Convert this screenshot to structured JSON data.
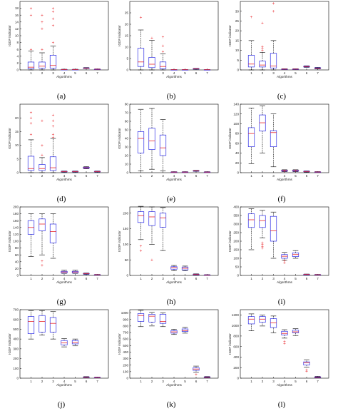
{
  "figure": {
    "xlabel": "Algorithms",
    "ylabel": "IGDF indicator"
  },
  "colors": {
    "box": "#2e2ee6",
    "median": "#e8262b",
    "whisker": "#000000",
    "outlier": "#e8262b",
    "axis": "#000000"
  },
  "chart_data": [
    {
      "type": "box",
      "caption": "(a)",
      "categories": [
        "1",
        "2",
        "3",
        "4",
        "5",
        "6",
        "7"
      ],
      "ylim": [
        0,
        20
      ],
      "yticks": [
        0,
        2,
        4,
        6,
        8,
        10,
        12,
        14,
        16,
        18
      ],
      "boxes": [
        {
          "min": 0,
          "q1": 0.3,
          "median": 0.8,
          "q3": 2.3,
          "max": 5.5,
          "outliers": [
            6,
            16,
            18
          ]
        },
        {
          "min": 0,
          "q1": 0.5,
          "median": 1.1,
          "q3": 2.3,
          "max": 5,
          "outliers": [
            6,
            12,
            14,
            16
          ]
        },
        {
          "min": 0,
          "q1": 0.5,
          "median": 1.3,
          "q3": 4.3,
          "max": 7,
          "outliers": [
            8,
            13,
            15,
            17,
            18
          ]
        },
        {
          "min": 0.05,
          "q1": 0.1,
          "median": 0.12,
          "q3": 0.15,
          "max": 0.2,
          "outliers": []
        },
        {
          "min": 0.05,
          "q1": 0.1,
          "median": 0.12,
          "q3": 0.15,
          "max": 0.2,
          "outliers": []
        },
        {
          "min": 0.4,
          "q1": 0.5,
          "median": 0.55,
          "q3": 0.6,
          "max": 0.7,
          "outliers": []
        },
        {
          "min": 0.1,
          "q1": 0.15,
          "median": 0.2,
          "q3": 0.25,
          "max": 0.3,
          "outliers": []
        }
      ]
    },
    {
      "type": "box",
      "caption": "(b)",
      "categories": [
        "1",
        "2",
        "3",
        "4",
        "5",
        "6",
        "7"
      ],
      "ylim": [
        0,
        30
      ],
      "yticks": [
        0,
        5,
        10,
        15,
        20,
        25
      ],
      "boxes": [
        {
          "min": 0,
          "q1": 1.5,
          "median": 3.5,
          "q3": 9.5,
          "max": 17.5,
          "outliers": [
            23
          ]
        },
        {
          "min": 0,
          "q1": 1,
          "median": 2.5,
          "q3": 5.5,
          "max": 13,
          "outliers": [
            14
          ]
        },
        {
          "min": 0,
          "q1": 0.5,
          "median": 1.5,
          "q3": 3.5,
          "max": 7,
          "outliers": [
            8,
            10.5,
            14.5
          ]
        },
        {
          "min": 0,
          "q1": 0.05,
          "median": 0.1,
          "q3": 0.15,
          "max": 0.2,
          "outliers": []
        },
        {
          "min": 0,
          "q1": 0.05,
          "median": 0.1,
          "q3": 0.15,
          "max": 0.2,
          "outliers": []
        },
        {
          "min": 0.3,
          "q1": 0.4,
          "median": 0.5,
          "q3": 0.6,
          "max": 0.7,
          "outliers": []
        },
        {
          "min": 0,
          "q1": 0.05,
          "median": 0.1,
          "q3": 0.15,
          "max": 0.2,
          "outliers": []
        }
      ]
    },
    {
      "type": "box",
      "caption": "(c)",
      "categories": [
        "1",
        "2",
        "3",
        "4",
        "5",
        "6",
        "7"
      ],
      "ylim": [
        0,
        35
      ],
      "yticks": [
        0,
        5,
        10,
        15,
        20,
        25,
        30
      ],
      "boxes": [
        {
          "min": 0,
          "q1": 1.5,
          "median": 3,
          "q3": 7.5,
          "max": 15,
          "outliers": [
            27
          ]
        },
        {
          "min": 0,
          "q1": 1.5,
          "median": 2.5,
          "q3": 4.5,
          "max": 9,
          "outliers": [
            10,
            11,
            12,
            24
          ]
        },
        {
          "min": 0,
          "q1": 1,
          "median": 2,
          "q3": 8.5,
          "max": 15,
          "outliers": [
            30,
            34
          ]
        },
        {
          "min": 0.2,
          "q1": 0.3,
          "median": 0.4,
          "q3": 0.5,
          "max": 0.6,
          "outliers": []
        },
        {
          "min": 0.2,
          "q1": 0.3,
          "median": 0.4,
          "q3": 0.5,
          "max": 0.6,
          "outliers": []
        },
        {
          "min": 1.3,
          "q1": 1.5,
          "median": 1.7,
          "q3": 1.9,
          "max": 2.1,
          "outliers": []
        },
        {
          "min": 0.5,
          "q1": 0.7,
          "median": 0.9,
          "q3": 1.1,
          "max": 1.3,
          "outliers": []
        }
      ]
    },
    {
      "type": "box",
      "caption": "(d)",
      "categories": [
        "1",
        "2",
        "3",
        "4",
        "5",
        "6",
        "7"
      ],
      "ylim": [
        0,
        25
      ],
      "yticks": [
        0,
        5,
        10,
        15,
        20
      ],
      "boxes": [
        {
          "min": 0,
          "q1": 0.8,
          "median": 1.5,
          "q3": 6,
          "max": 12,
          "outliers": [
            14,
            18,
            20,
            22
          ]
        },
        {
          "min": 0,
          "q1": 0.8,
          "median": 1.5,
          "q3": 3,
          "max": 5.5,
          "outliers": [
            6.5,
            10,
            19
          ]
        },
        {
          "min": 0,
          "q1": 0.8,
          "median": 1.8,
          "q3": 5.8,
          "max": 12.5,
          "outliers": [
            13,
            14,
            17,
            19,
            21
          ]
        },
        {
          "min": 0.2,
          "q1": 0.3,
          "median": 0.4,
          "q3": 0.5,
          "max": 0.6,
          "outliers": []
        },
        {
          "min": 0.2,
          "q1": 0.3,
          "median": 0.4,
          "q3": 0.5,
          "max": 0.6,
          "outliers": []
        },
        {
          "min": 1.4,
          "q1": 1.6,
          "median": 1.8,
          "q3": 2.0,
          "max": 2.2,
          "outliers": []
        },
        {
          "min": 0.2,
          "q1": 0.3,
          "median": 0.4,
          "q3": 0.5,
          "max": 0.6,
          "outliers": []
        }
      ]
    },
    {
      "type": "box",
      "caption": "(e)",
      "categories": [
        "1",
        "2",
        "3",
        "4",
        "5",
        "6",
        "7"
      ],
      "ylim": [
        0,
        80
      ],
      "yticks": [
        0,
        10,
        20,
        30,
        40,
        50,
        60,
        70,
        80
      ],
      "boxes": [
        {
          "min": 2,
          "q1": 23,
          "median": 40,
          "q3": 48,
          "max": 74,
          "outliers": []
        },
        {
          "min": 4,
          "q1": 27,
          "median": 37,
          "q3": 52,
          "max": 75,
          "outliers": []
        },
        {
          "min": 2,
          "q1": 20,
          "median": 29,
          "q3": 44,
          "max": 62,
          "outliers": []
        },
        {
          "min": 0.3,
          "q1": 0.5,
          "median": 0.7,
          "q3": 0.9,
          "max": 1.2,
          "outliers": []
        },
        {
          "min": 0.3,
          "q1": 0.5,
          "median": 0.7,
          "q3": 0.9,
          "max": 1.2,
          "outliers": []
        },
        {
          "min": 1.5,
          "q1": 1.9,
          "median": 2.1,
          "q3": 2.4,
          "max": 2.8,
          "outliers": []
        },
        {
          "min": 0.3,
          "q1": 0.5,
          "median": 0.7,
          "q3": 0.9,
          "max": 1.2,
          "outliers": []
        }
      ]
    },
    {
      "type": "box",
      "caption": "(f)",
      "categories": [
        "1",
        "2",
        "3",
        "4",
        "5",
        "6",
        "7"
      ],
      "ylim": [
        0,
        140
      ],
      "yticks": [
        0,
        20,
        40,
        60,
        80,
        100,
        120,
        140
      ],
      "boxes": [
        {
          "min": 18,
          "q1": 53,
          "median": 80,
          "q3": 92,
          "max": 132,
          "outliers": []
        },
        {
          "min": 40,
          "q1": 85,
          "median": 102,
          "q3": 118,
          "max": 137,
          "outliers": []
        },
        {
          "min": 12,
          "q1": 53,
          "median": 82,
          "q3": 86,
          "max": 120,
          "outliers": []
        },
        {
          "min": 2,
          "q1": 3,
          "median": 4,
          "q3": 5,
          "max": 6,
          "outliers": [
            3,
            4
          ]
        },
        {
          "min": 2,
          "q1": 3,
          "median": 4,
          "q3": 5,
          "max": 6,
          "outliers": [
            4
          ]
        },
        {
          "min": 1,
          "q1": 1.8,
          "median": 2.4,
          "q3": 3,
          "max": 3.6,
          "outliers": []
        },
        {
          "min": 0.5,
          "q1": 1,
          "median": 1.4,
          "q3": 1.8,
          "max": 2.2,
          "outliers": []
        }
      ]
    },
    {
      "type": "box",
      "caption": "(g)",
      "categories": [
        "1",
        "2",
        "3",
        "4",
        "5",
        "6",
        "7"
      ],
      "ylim": [
        0,
        200
      ],
      "yticks": [
        0,
        20,
        40,
        60,
        80,
        100,
        120,
        140,
        160,
        180,
        200
      ],
      "boxes": [
        {
          "min": 55,
          "q1": 120,
          "median": 140,
          "q3": 160,
          "max": 180,
          "outliers": []
        },
        {
          "min": 60,
          "q1": 130,
          "median": 150,
          "q3": 165,
          "max": 180,
          "outliers": [
            30,
            42
          ]
        },
        {
          "min": 50,
          "q1": 95,
          "median": 128,
          "q3": 150,
          "max": 180,
          "outliers": []
        },
        {
          "min": 6,
          "q1": 7,
          "median": 10,
          "q3": 12,
          "max": 15,
          "outliers": []
        },
        {
          "min": 6,
          "q1": 7,
          "median": 10,
          "q3": 12,
          "max": 15,
          "outliers": []
        },
        {
          "min": 3,
          "q1": 4,
          "median": 5,
          "q3": 6,
          "max": 7,
          "outliers": []
        },
        {
          "min": 1,
          "q1": 1.5,
          "median": 2,
          "q3": 2.5,
          "max": 3,
          "outliers": []
        }
      ]
    },
    {
      "type": "box",
      "caption": "(h)",
      "categories": [
        "1",
        "2",
        "3",
        "4",
        "5",
        "6",
        "7"
      ],
      "ylim": [
        0,
        220
      ],
      "yticks": [
        0,
        50,
        100,
        150,
        200
      ],
      "boxes": [
        {
          "min": 115,
          "q1": 170,
          "median": 192,
          "q3": 205,
          "max": 222,
          "outliers": [
            80,
            95
          ]
        },
        {
          "min": 100,
          "q1": 160,
          "median": 188,
          "q3": 205,
          "max": 220,
          "outliers": [
            50
          ]
        },
        {
          "min": 80,
          "q1": 155,
          "median": 185,
          "q3": 200,
          "max": 218,
          "outliers": []
        },
        {
          "min": 15,
          "q1": 20,
          "median": 25,
          "q3": 28,
          "max": 32,
          "outliers": []
        },
        {
          "min": 15,
          "q1": 18,
          "median": 23,
          "q3": 27,
          "max": 30,
          "outliers": []
        },
        {
          "min": 1,
          "q1": 2,
          "median": 3,
          "q3": 4,
          "max": 5,
          "outliers": []
        },
        {
          "min": 0.5,
          "q1": 1,
          "median": 1.5,
          "q3": 2,
          "max": 2.5,
          "outliers": []
        }
      ]
    },
    {
      "type": "box",
      "caption": "(i)",
      "categories": [
        "1",
        "2",
        "3",
        "4",
        "5",
        "6",
        "7"
      ],
      "ylim": [
        0,
        400
      ],
      "yticks": [
        0,
        50,
        100,
        150,
        200,
        250,
        300,
        350,
        400
      ],
      "boxes": [
        {
          "min": 150,
          "q1": 280,
          "median": 325,
          "q3": 360,
          "max": 390,
          "outliers": []
        },
        {
          "min": 220,
          "q1": 280,
          "median": 320,
          "q3": 350,
          "max": 380,
          "outliers": [
            160,
            170,
            180,
            190
          ]
        },
        {
          "min": 100,
          "q1": 200,
          "median": 260,
          "q3": 345,
          "max": 370,
          "outliers": []
        },
        {
          "min": 90,
          "q1": 100,
          "median": 112,
          "q3": 122,
          "max": 135,
          "outliers": [
            75,
            85
          ]
        },
        {
          "min": 100,
          "q1": 110,
          "median": 122,
          "q3": 132,
          "max": 145,
          "outliers": []
        },
        {
          "min": 4,
          "q1": 5,
          "median": 6,
          "q3": 7,
          "max": 8,
          "outliers": []
        },
        {
          "min": 2,
          "q1": 3,
          "median": 4,
          "q3": 5,
          "max": 6,
          "outliers": []
        }
      ]
    },
    {
      "type": "box",
      "caption": "(j)",
      "categories": [
        "1",
        "2",
        "3",
        "4",
        "5",
        "6",
        "7"
      ],
      "ylim": [
        0,
        700
      ],
      "yticks": [
        0,
        100,
        200,
        300,
        400,
        500,
        600,
        700
      ],
      "boxes": [
        {
          "min": 400,
          "q1": 455,
          "median": 580,
          "q3": 630,
          "max": 690,
          "outliers": []
        },
        {
          "min": 440,
          "q1": 470,
          "median": 580,
          "q3": 640,
          "max": 690,
          "outliers": []
        },
        {
          "min": 400,
          "q1": 470,
          "median": 560,
          "q3": 620,
          "max": 680,
          "outliers": []
        },
        {
          "min": 320,
          "q1": 340,
          "median": 360,
          "q3": 385,
          "max": 405,
          "outliers": []
        },
        {
          "min": 330,
          "q1": 350,
          "median": 365,
          "q3": 385,
          "max": 400,
          "outliers": []
        },
        {
          "min": 5,
          "q1": 7,
          "median": 10,
          "q3": 13,
          "max": 16,
          "outliers": []
        },
        {
          "min": 3,
          "q1": 5,
          "median": 7,
          "q3": 9,
          "max": 11,
          "outliers": []
        }
      ]
    },
    {
      "type": "box",
      "caption": "(k)",
      "categories": [
        "1",
        "2",
        "3",
        "4",
        "5",
        "6",
        "7"
      ],
      "ylim": [
        0,
        1050
      ],
      "yticks": [
        0,
        100,
        200,
        300,
        400,
        500,
        600,
        700,
        800,
        900,
        1000
      ],
      "boxes": [
        {
          "min": 790,
          "q1": 870,
          "median": 960,
          "q3": 990,
          "max": 1040,
          "outliers": []
        },
        {
          "min": 800,
          "q1": 860,
          "median": 950,
          "q3": 980,
          "max": 1010,
          "outliers": []
        },
        {
          "min": 790,
          "q1": 840,
          "median": 870,
          "q3": 980,
          "max": 1000,
          "outliers": []
        },
        {
          "min": 670,
          "q1": 690,
          "median": 710,
          "q3": 730,
          "max": 750,
          "outliers": []
        },
        {
          "min": 690,
          "q1": 715,
          "median": 730,
          "q3": 755,
          "max": 780,
          "outliers": []
        },
        {
          "min": 90,
          "q1": 120,
          "median": 140,
          "q3": 160,
          "max": 185,
          "outliers": [
            60
          ]
        },
        {
          "min": 5,
          "q1": 10,
          "median": 15,
          "q3": 20,
          "max": 25,
          "outliers": []
        }
      ]
    },
    {
      "type": "box",
      "caption": "(l)",
      "categories": [
        "1",
        "2",
        "3",
        "4",
        "5",
        "6",
        "7"
      ],
      "ylim": [
        0,
        1300
      ],
      "yticks": [
        0,
        200,
        400,
        600,
        800,
        1000,
        1200
      ],
      "boxes": [
        {
          "min": 900,
          "q1": 1030,
          "median": 1120,
          "q3": 1170,
          "max": 1220,
          "outliers": []
        },
        {
          "min": 990,
          "q1": 1060,
          "median": 1120,
          "q3": 1170,
          "max": 1200,
          "outliers": []
        },
        {
          "min": 860,
          "q1": 960,
          "median": 1050,
          "q3": 1130,
          "max": 1180,
          "outliers": []
        },
        {
          "min": 760,
          "q1": 820,
          "median": 850,
          "q3": 890,
          "max": 920,
          "outliers": [
            660,
            700
          ]
        },
        {
          "min": 810,
          "q1": 860,
          "median": 880,
          "q3": 910,
          "max": 940,
          "outliers": []
        },
        {
          "min": 210,
          "q1": 250,
          "median": 290,
          "q3": 310,
          "max": 350,
          "outliers": [
            130,
            160
          ]
        },
        {
          "min": 5,
          "q1": 10,
          "median": 18,
          "q3": 25,
          "max": 35,
          "outliers": []
        }
      ]
    }
  ]
}
